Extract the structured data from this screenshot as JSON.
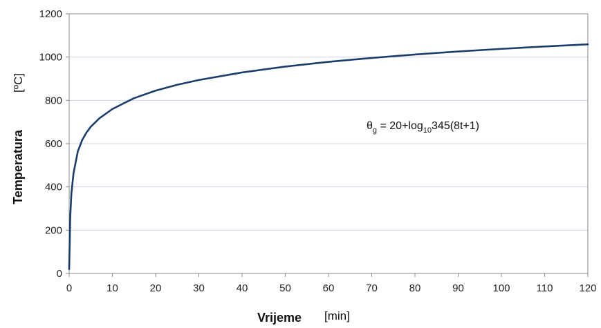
{
  "chart_data": {
    "type": "line",
    "title": "",
    "xlabel": "Vrijeme",
    "xunit": "[min]",
    "ylabel": "Temperatura",
    "yunit": "[ºC]",
    "xlim": [
      0,
      120
    ],
    "ylim": [
      0,
      1200
    ],
    "xticks": [
      0,
      10,
      20,
      30,
      40,
      50,
      60,
      70,
      80,
      90,
      100,
      110,
      120
    ],
    "yticks": [
      0,
      200,
      400,
      600,
      800,
      1000,
      1200
    ],
    "grid": "horizontal",
    "colors": {
      "line": "#1a3d6b",
      "grid": "#cfd3ea",
      "axis": "#888888"
    },
    "annotation": {
      "parts": [
        "θ",
        "g",
        " = 20+log",
        "10",
        "345(8t+1)"
      ],
      "position": "middle-right"
    },
    "series": [
      {
        "name": "",
        "x": [
          0,
          0.25,
          0.5,
          1,
          2,
          3,
          4,
          5,
          7,
          10,
          15,
          20,
          25,
          30,
          40,
          50,
          60,
          70,
          80,
          90,
          100,
          110,
          120
        ],
        "values": [
          20,
          261,
          365,
          462,
          564,
          616,
          651,
          678,
          717,
          760,
          810,
          845,
          872,
          894,
          929,
          956,
          978,
          996,
          1012,
          1026,
          1038,
          1049,
          1059
        ]
      }
    ]
  }
}
